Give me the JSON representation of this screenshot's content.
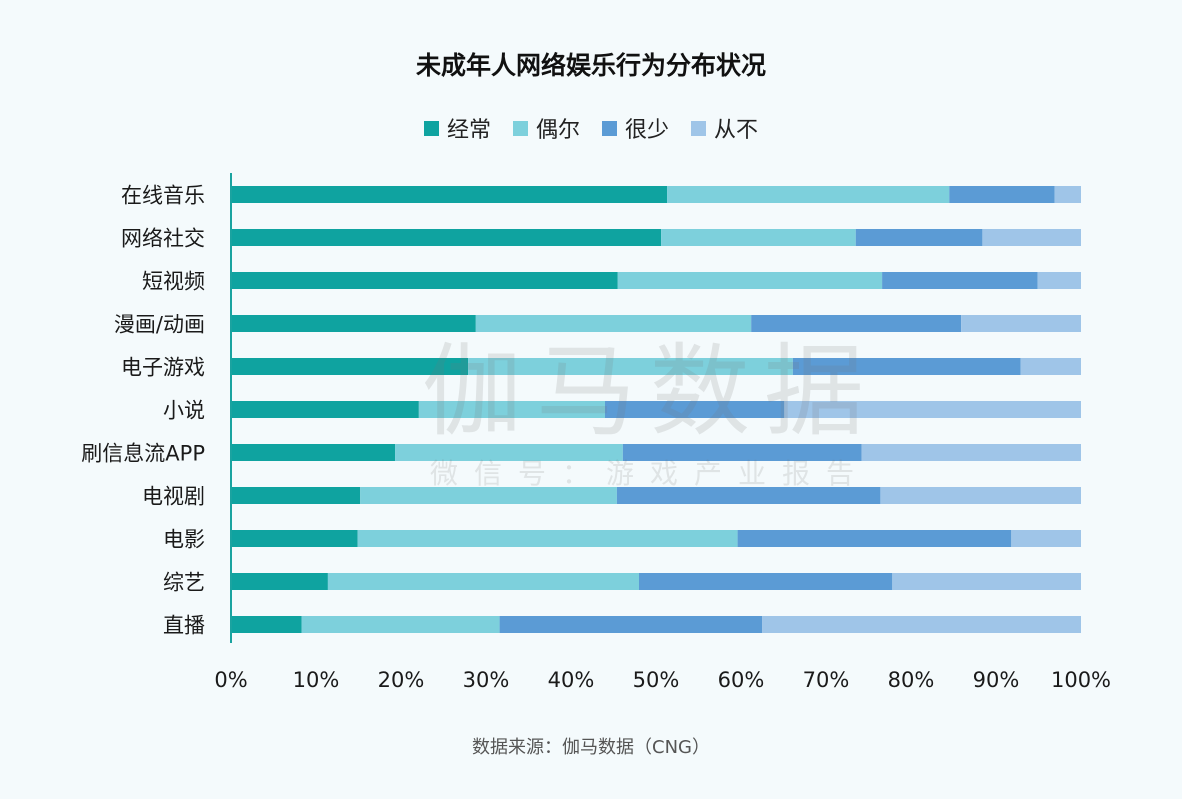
{
  "chart_data": {
    "type": "bar",
    "orientation": "horizontal",
    "stacked": "percent",
    "title": "未成年人网络娱乐行为分布状况",
    "categories": [
      "在线音乐",
      "网络社交",
      "短视频",
      "漫画/动画",
      "电子游戏",
      "小说",
      "刷信息流APP",
      "电视剧",
      "电影",
      "综艺",
      "直播"
    ],
    "series": [
      {
        "name": "经常",
        "color": "#0fa3a0",
        "values": [
          51.3,
          50.6,
          45.5,
          28.8,
          27.9,
          22.1,
          19.3,
          15.2,
          14.9,
          11.4,
          8.3
        ]
      },
      {
        "name": "偶尔",
        "color": "#7dd0dc",
        "values": [
          33.2,
          22.9,
          31.1,
          32.4,
          38.2,
          21.9,
          26.8,
          30.2,
          44.7,
          36.6,
          23.3
        ]
      },
      {
        "name": "很少",
        "color": "#5b9bd5",
        "values": [
          12.4,
          14.9,
          18.3,
          24.7,
          26.8,
          21.1,
          28.1,
          31.0,
          32.2,
          29.8,
          30.9
        ]
      },
      {
        "name": "从不",
        "color": "#9fc5e8",
        "values": [
          3.1,
          11.6,
          5.1,
          14.1,
          7.1,
          34.9,
          25.8,
          23.6,
          8.2,
          22.2,
          37.5
        ]
      }
    ],
    "xlim": [
      0,
      100
    ],
    "xticks": [
      "0%",
      "10%",
      "20%",
      "30%",
      "40%",
      "50%",
      "60%",
      "70%",
      "80%",
      "90%",
      "100%"
    ],
    "legend_position": "top",
    "grid": false
  },
  "watermark": {
    "main": "伽马数据",
    "sub": "微信号：游戏产业报告"
  },
  "source": "数据来源：伽马数据（CNG）"
}
